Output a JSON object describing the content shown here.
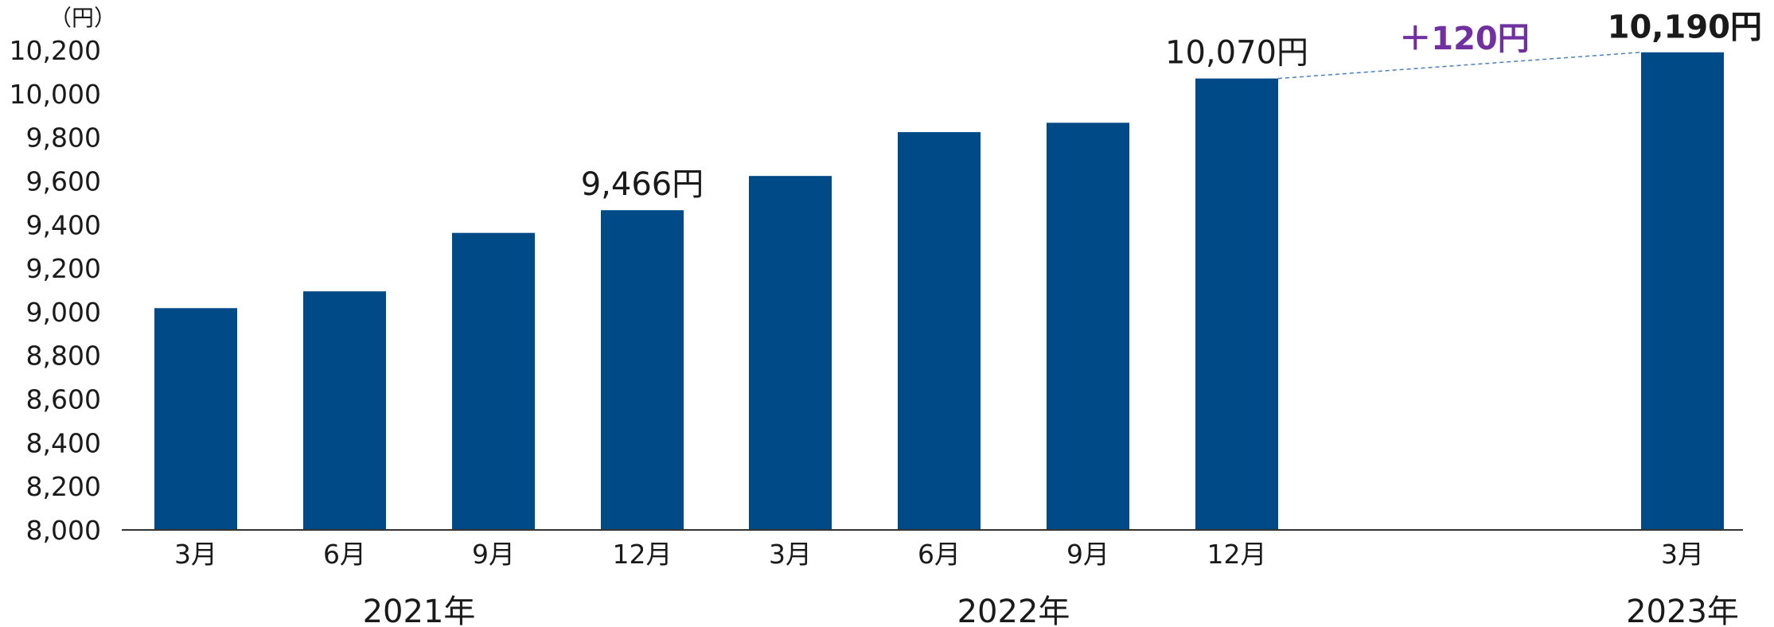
{
  "chart_data": {
    "type": "bar",
    "unit_label": "（円）",
    "categories": [
      "3月",
      "6月",
      "9月",
      "12月",
      "3月",
      "6月",
      "9月",
      "12月",
      "3月"
    ],
    "values": [
      9017,
      9094,
      9362,
      9466,
      9623,
      9824,
      9867,
      10070,
      10190
    ],
    "years": [
      {
        "label": "2021年",
        "from": 0,
        "to": 3
      },
      {
        "label": "2022年",
        "from": 4,
        "to": 7
      },
      {
        "label": "2023年",
        "from": 8,
        "to": 8
      }
    ],
    "ylim": [
      8000,
      10200
    ],
    "yticks": [
      8000,
      8200,
      8400,
      8600,
      8800,
      9000,
      9200,
      9400,
      9600,
      9800,
      10000,
      10200
    ],
    "ytick_labels": [
      "8,000",
      "8,200",
      "8,400",
      "8,600",
      "8,800",
      "9,000",
      "9,200",
      "9,400",
      "9,600",
      "9,800",
      "10,000",
      "10,200"
    ],
    "data_labels": [
      {
        "index": 3,
        "text": "9,466円",
        "bold": false
      },
      {
        "index": 7,
        "text": "10,070円",
        "bold": false
      },
      {
        "index": 8,
        "text": "10,190円",
        "bold": true
      }
    ],
    "annotation": {
      "text": "＋120円",
      "from_index": 7,
      "to_index": 8,
      "color": "#7030a0"
    },
    "bar_color": "#004b87",
    "grid": false,
    "legend": "none"
  }
}
